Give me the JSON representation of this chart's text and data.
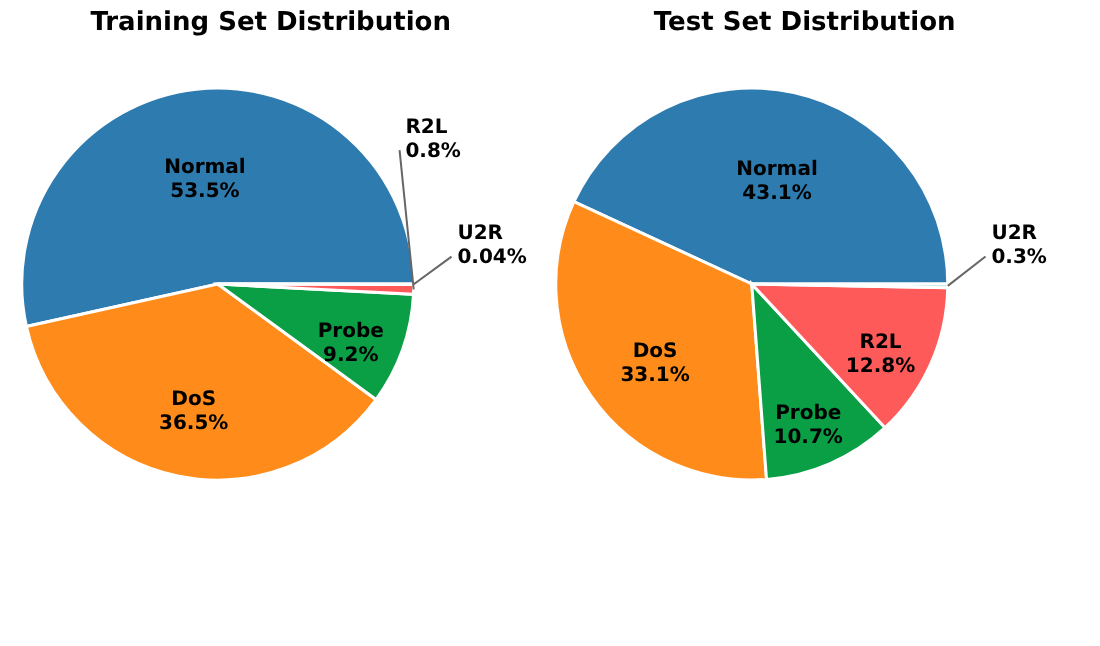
{
  "chart_data": [
    {
      "type": "pie",
      "title": "Training Set Distribution",
      "categories": [
        "Normal",
        "DoS",
        "Probe",
        "R2L",
        "U2R"
      ],
      "values": [
        53.5,
        36.5,
        9.2,
        0.8,
        0.04
      ],
      "value_labels": [
        "53.5%",
        "36.5%",
        "9.2%",
        "0.8%",
        "0.04%"
      ],
      "colors": [
        "#2e7bb0",
        "#ff8c1a",
        "#0a9e45",
        "#ff5a5a",
        "#8fd3e0"
      ]
    },
    {
      "type": "pie",
      "title": "Test Set Distribution",
      "categories": [
        "Normal",
        "DoS",
        "Probe",
        "R2L",
        "U2R"
      ],
      "values": [
        43.1,
        33.1,
        10.7,
        12.8,
        0.3
      ],
      "value_labels": [
        "43.1%",
        "33.1%",
        "10.7%",
        "12.8%",
        "0.3%"
      ],
      "colors": [
        "#2e7bb0",
        "#ff8c1a",
        "#0a9e45",
        "#ff5a5a",
        "#8fd3e0"
      ]
    }
  ]
}
